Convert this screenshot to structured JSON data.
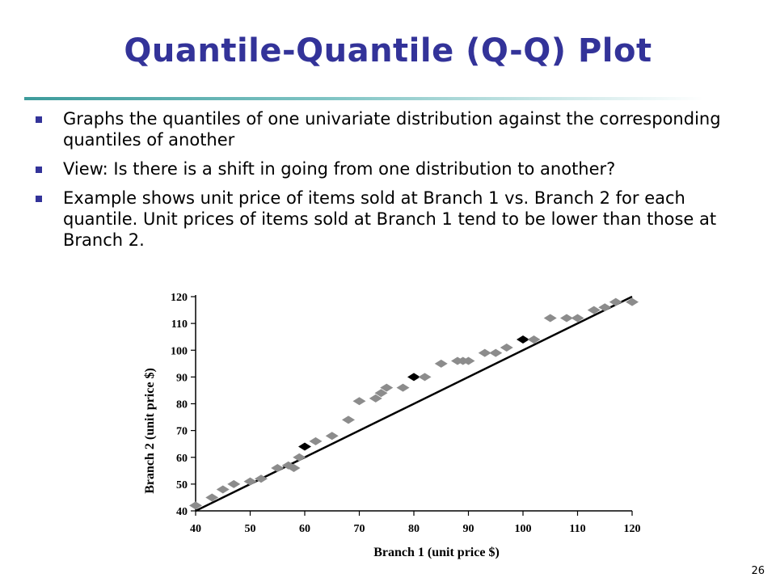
{
  "slide": {
    "title": "Quantile-Quantile (Q-Q) Plot",
    "page_number": "26",
    "bullets": [
      "Graphs the quantiles of one univariate distribution against the corresponding quantiles of another",
      "View: Is there is a shift in going from one distribution to another?",
      "Example shows unit price of items sold at Branch 1 vs. Branch 2 for each quantile.  Unit prices of items sold at Branch 1 tend to be lower than those at Branch 2."
    ]
  },
  "colors": {
    "title": "#333399",
    "bullet": "#333399",
    "rule": "#3d9b9b",
    "point": "#8c8c8c",
    "highlight_point": "#000000",
    "line": "#000000"
  },
  "chart_data": {
    "type": "scatter",
    "title": "",
    "xlabel": "Branch 1 (unit price $)",
    "ylabel": "Branch 2 (unit price $)",
    "xlim": [
      40,
      120
    ],
    "ylim": [
      40,
      120
    ],
    "xticks": [
      40,
      50,
      60,
      70,
      80,
      90,
      100,
      110,
      120
    ],
    "yticks": [
      40,
      50,
      60,
      70,
      80,
      90,
      100,
      110,
      120
    ],
    "reference_line": [
      [
        40,
        40
      ],
      [
        120,
        120
      ]
    ],
    "grid": false,
    "points": [
      {
        "x": 40,
        "y": 42,
        "highlight": false
      },
      {
        "x": 43,
        "y": 45,
        "highlight": false
      },
      {
        "x": 45,
        "y": 48,
        "highlight": false
      },
      {
        "x": 47,
        "y": 50,
        "highlight": false
      },
      {
        "x": 50,
        "y": 51,
        "highlight": false
      },
      {
        "x": 52,
        "y": 52,
        "highlight": false
      },
      {
        "x": 55,
        "y": 56,
        "highlight": false
      },
      {
        "x": 57,
        "y": 57,
        "highlight": false
      },
      {
        "x": 58,
        "y": 56,
        "highlight": false
      },
      {
        "x": 59,
        "y": 60,
        "highlight": false
      },
      {
        "x": 60,
        "y": 64,
        "highlight": true
      },
      {
        "x": 62,
        "y": 66,
        "highlight": false
      },
      {
        "x": 65,
        "y": 68,
        "highlight": false
      },
      {
        "x": 68,
        "y": 74,
        "highlight": false
      },
      {
        "x": 70,
        "y": 81,
        "highlight": false
      },
      {
        "x": 73,
        "y": 82,
        "highlight": false
      },
      {
        "x": 74,
        "y": 84,
        "highlight": false
      },
      {
        "x": 75,
        "y": 86,
        "highlight": false
      },
      {
        "x": 78,
        "y": 86,
        "highlight": false
      },
      {
        "x": 80,
        "y": 90,
        "highlight": true
      },
      {
        "x": 82,
        "y": 90,
        "highlight": false
      },
      {
        "x": 85,
        "y": 95,
        "highlight": false
      },
      {
        "x": 88,
        "y": 96,
        "highlight": false
      },
      {
        "x": 89,
        "y": 96,
        "highlight": false
      },
      {
        "x": 90,
        "y": 96,
        "highlight": false
      },
      {
        "x": 93,
        "y": 99,
        "highlight": false
      },
      {
        "x": 95,
        "y": 99,
        "highlight": false
      },
      {
        "x": 97,
        "y": 101,
        "highlight": false
      },
      {
        "x": 100,
        "y": 104,
        "highlight": true
      },
      {
        "x": 102,
        "y": 104,
        "highlight": false
      },
      {
        "x": 105,
        "y": 112,
        "highlight": false
      },
      {
        "x": 108,
        "y": 112,
        "highlight": false
      },
      {
        "x": 110,
        "y": 112,
        "highlight": false
      },
      {
        "x": 113,
        "y": 115,
        "highlight": false
      },
      {
        "x": 115,
        "y": 116,
        "highlight": false
      },
      {
        "x": 117,
        "y": 118,
        "highlight": false
      },
      {
        "x": 120,
        "y": 118,
        "highlight": false
      }
    ]
  }
}
